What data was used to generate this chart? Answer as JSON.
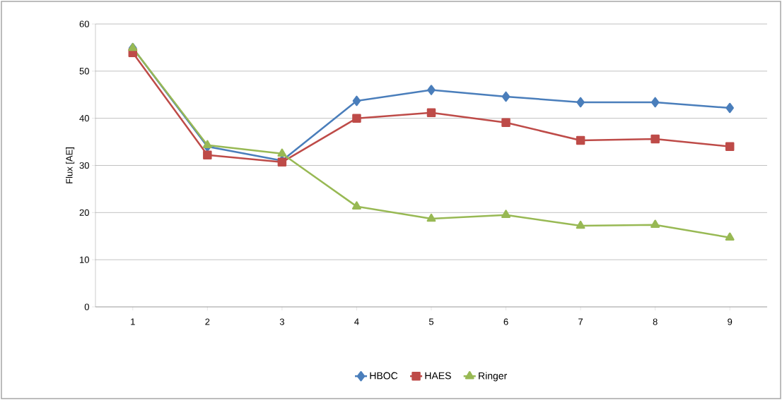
{
  "chart_data": {
    "type": "line",
    "ylabel": "Flux [AE]",
    "categories": [
      "1",
      "2",
      "3",
      "4",
      "5",
      "6",
      "7",
      "8",
      "9"
    ],
    "series": [
      {
        "name": "HBOC",
        "color": "#4a7ebb",
        "marker": "diamond",
        "values": [
          54.9,
          34.0,
          31.0,
          43.7,
          46.0,
          44.6,
          43.4,
          43.4,
          42.2
        ]
      },
      {
        "name": "HAES",
        "color": "#be4b48",
        "marker": "square",
        "values": [
          53.9,
          32.2,
          30.7,
          40.0,
          41.2,
          39.1,
          35.3,
          35.6,
          34.0
        ]
      },
      {
        "name": "Ringer",
        "color": "#98b954",
        "marker": "triangle",
        "values": [
          54.9,
          34.3,
          32.5,
          21.3,
          18.7,
          19.5,
          17.2,
          17.4,
          14.7
        ]
      }
    ],
    "ylim": [
      0,
      60
    ],
    "yticks": [
      0,
      10,
      20,
      30,
      40,
      50,
      60
    ],
    "grid": "y",
    "legend": "bottom"
  }
}
